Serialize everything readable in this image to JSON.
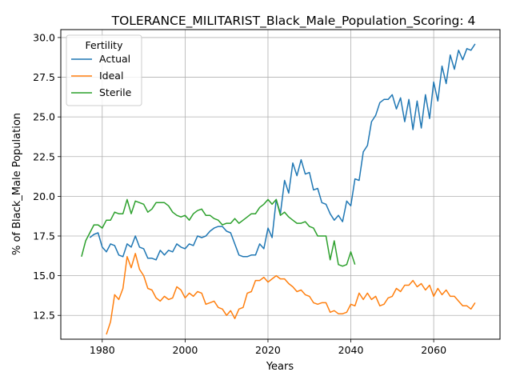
{
  "chart_data": {
    "type": "line",
    "title": "TOLERANCE_MILITARIST_Black_Male_Population_Scoring: 4",
    "xlabel": "Years",
    "ylabel": "% of Black_Male Population",
    "xlim": [
      1970,
      2076
    ],
    "ylim": [
      11.0,
      30.5
    ],
    "xticks": [
      1980,
      2000,
      2020,
      2040,
      2060
    ],
    "yticks": [
      12.5,
      15.0,
      17.5,
      20.0,
      22.5,
      25.0,
      27.5,
      30.0
    ],
    "ytick_labels": [
      "12.5",
      "15.0",
      "17.5",
      "20.0",
      "22.5",
      "25.0",
      "27.5",
      "30.0"
    ],
    "grid": true,
    "legend": {
      "title": "Fertility",
      "position": "top-left"
    },
    "series": [
      {
        "name": "Actual",
        "color": "#1f77b4",
        "x": [
          1977,
          1978,
          1979,
          1980,
          1981,
          1982,
          1983,
          1984,
          1985,
          1986,
          1987,
          1988,
          1989,
          1990,
          1991,
          1992,
          1993,
          1994,
          1995,
          1996,
          1997,
          1998,
          1999,
          2000,
          2001,
          2002,
          2003,
          2004,
          2005,
          2006,
          2007,
          2008,
          2009,
          2010,
          2011,
          2012,
          2013,
          2014,
          2015,
          2016,
          2017,
          2018,
          2019,
          2020,
          2021,
          2022,
          2023,
          2024,
          2025,
          2026,
          2027,
          2028,
          2029,
          2030,
          2031,
          2032,
          2033,
          2034,
          2035,
          2036,
          2037,
          2038,
          2039,
          2040,
          2041,
          2042,
          2043,
          2044,
          2045,
          2046,
          2047,
          2048,
          2049,
          2050,
          2051,
          2052,
          2053,
          2054,
          2055,
          2056,
          2057,
          2058,
          2059,
          2060,
          2061,
          2062,
          2063,
          2064,
          2065,
          2066,
          2067,
          2068,
          2069,
          2070
        ],
        "values": [
          17.4,
          17.6,
          17.7,
          16.8,
          16.5,
          17.0,
          16.9,
          16.3,
          16.2,
          17.0,
          16.8,
          17.5,
          16.8,
          16.7,
          16.1,
          16.1,
          16.0,
          16.6,
          16.3,
          16.6,
          16.5,
          17.0,
          16.8,
          16.7,
          17.0,
          16.9,
          17.5,
          17.4,
          17.5,
          17.8,
          18.0,
          18.1,
          18.1,
          17.8,
          17.7,
          17.0,
          16.3,
          16.2,
          16.2,
          16.3,
          16.3,
          17.0,
          16.7,
          18.0,
          17.4,
          19.8,
          18.9,
          21.0,
          20.2,
          22.1,
          21.3,
          22.3,
          21.4,
          21.5,
          20.4,
          20.5,
          19.6,
          19.5,
          18.9,
          18.5,
          18.8,
          18.4,
          19.7,
          19.4,
          21.1,
          21.0,
          22.8,
          23.2,
          24.7,
          25.1,
          25.9,
          26.1,
          26.1,
          26.4,
          25.5,
          26.2,
          24.7,
          26.1,
          24.2,
          26.0,
          24.3,
          26.4,
          24.9,
          27.2,
          26.0,
          28.2,
          27.1,
          28.9,
          28.0,
          29.2,
          28.6,
          29.3,
          29.2,
          29.6
        ]
      },
      {
        "name": "Ideal",
        "color": "#ff7f0e",
        "x": [
          1981,
          1982,
          1983,
          1984,
          1985,
          1986,
          1987,
          1988,
          1989,
          1990,
          1991,
          1992,
          1993,
          1994,
          1995,
          1996,
          1997,
          1998,
          1999,
          2000,
          2001,
          2002,
          2003,
          2004,
          2005,
          2006,
          2007,
          2008,
          2009,
          2010,
          2011,
          2012,
          2013,
          2014,
          2015,
          2016,
          2017,
          2018,
          2019,
          2020,
          2021,
          2022,
          2023,
          2024,
          2025,
          2026,
          2027,
          2028,
          2029,
          2030,
          2031,
          2032,
          2033,
          2034,
          2035,
          2036,
          2037,
          2038,
          2039,
          2040,
          2041,
          2042,
          2043,
          2044,
          2045,
          2046,
          2047,
          2048,
          2049,
          2050,
          2051,
          2052,
          2053,
          2054,
          2055,
          2056,
          2057,
          2058,
          2059,
          2060,
          2061,
          2062,
          2063,
          2064,
          2065,
          2066,
          2067,
          2068,
          2069,
          2070
        ],
        "values": [
          11.3,
          12.1,
          13.8,
          13.5,
          14.2,
          16.2,
          15.5,
          16.4,
          15.4,
          15.0,
          14.2,
          14.1,
          13.6,
          13.4,
          13.7,
          13.5,
          13.6,
          14.3,
          14.1,
          13.6,
          13.9,
          13.7,
          14.0,
          13.9,
          13.2,
          13.3,
          13.4,
          13.0,
          12.9,
          12.5,
          12.8,
          12.3,
          12.9,
          13.0,
          13.9,
          14.0,
          14.7,
          14.7,
          14.9,
          14.6,
          14.8,
          15.0,
          14.8,
          14.8,
          14.5,
          14.3,
          14.0,
          14.1,
          13.8,
          13.7,
          13.3,
          13.2,
          13.3,
          13.3,
          12.7,
          12.8,
          12.6,
          12.6,
          12.7,
          13.2,
          13.1,
          13.9,
          13.5,
          13.9,
          13.5,
          13.7,
          13.1,
          13.2,
          13.6,
          13.7,
          14.2,
          14.0,
          14.4,
          14.4,
          14.7,
          14.3,
          14.5,
          14.1,
          14.4,
          13.7,
          14.2,
          13.8,
          14.1,
          13.7,
          13.7,
          13.4,
          13.1,
          13.1,
          12.9,
          13.3
        ]
      },
      {
        "name": "Sterile",
        "color": "#2ca02c",
        "x": [
          1975,
          1976,
          1977,
          1978,
          1979,
          1980,
          1981,
          1982,
          1983,
          1984,
          1985,
          1986,
          1987,
          1988,
          1989,
          1990,
          1991,
          1992,
          1993,
          1994,
          1995,
          1996,
          1997,
          1998,
          1999,
          2000,
          2001,
          2002,
          2003,
          2004,
          2005,
          2006,
          2007,
          2008,
          2009,
          2010,
          2011,
          2012,
          2013,
          2014,
          2015,
          2016,
          2017,
          2018,
          2019,
          2020,
          2021,
          2022,
          2023,
          2024,
          2025,
          2026,
          2027,
          2028,
          2029,
          2030,
          2031,
          2032,
          2033,
          2034,
          2035,
          2036,
          2037,
          2038,
          2039,
          2040,
          2041
        ],
        "values": [
          16.2,
          17.2,
          17.7,
          18.2,
          18.2,
          18.0,
          18.5,
          18.5,
          19.0,
          18.9,
          18.9,
          19.8,
          18.9,
          19.7,
          19.6,
          19.5,
          19.0,
          19.2,
          19.6,
          19.6,
          19.6,
          19.4,
          19.0,
          18.8,
          18.7,
          18.8,
          18.5,
          18.9,
          19.1,
          19.2,
          18.8,
          18.8,
          18.6,
          18.5,
          18.2,
          18.3,
          18.3,
          18.6,
          18.3,
          18.5,
          18.7,
          18.9,
          18.9,
          19.3,
          19.5,
          19.8,
          19.5,
          19.8,
          18.8,
          19.0,
          18.7,
          18.5,
          18.3,
          18.3,
          18.4,
          18.1,
          18.0,
          17.5,
          17.5,
          17.5,
          16.0,
          17.2,
          15.7,
          15.6,
          15.7,
          16.5,
          15.7
        ]
      }
    ]
  }
}
